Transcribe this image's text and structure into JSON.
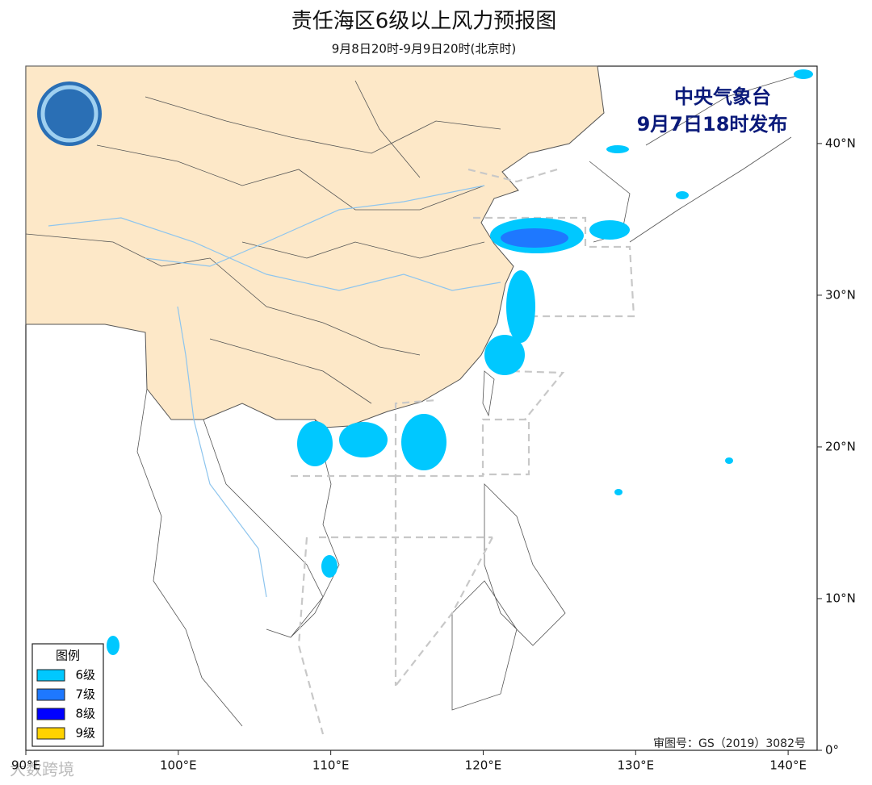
{
  "header": {
    "title": "责任海区6级以上风力预报图",
    "subtitle": "9月8日20时-9月9日20时(北京时)"
  },
  "issuer": {
    "name": "中央气象台",
    "time": "9月7日18时发布"
  },
  "map": {
    "xlim": [
      90,
      141.9
    ],
    "ylim": [
      0,
      45.1
    ],
    "xticks": [
      {
        "value": 90,
        "label": "90°E"
      },
      {
        "value": 100,
        "label": "100°E"
      },
      {
        "value": 110,
        "label": "110°E"
      },
      {
        "value": 120,
        "label": "120°E"
      },
      {
        "value": 130,
        "label": "130°E"
      },
      {
        "value": 140,
        "label": "140°E"
      }
    ],
    "yticks": [
      {
        "value": 0,
        "label": "0°"
      },
      {
        "value": 10,
        "label": "10°N"
      },
      {
        "value": 20,
        "label": "20°N"
      },
      {
        "value": 30,
        "label": "30°N"
      },
      {
        "value": 40,
        "label": "40°N"
      }
    ]
  },
  "legend": {
    "title": "图例",
    "items": [
      {
        "label": "6级",
        "color": "#00c8ff"
      },
      {
        "label": "7级",
        "color": "#1e78ff"
      },
      {
        "label": "8级",
        "color": "#0000ff"
      },
      {
        "label": "9级",
        "color": "#ffd200"
      }
    ]
  },
  "review_number": "审图号：GS（2019）3082号",
  "watermark": "大数跨境"
}
